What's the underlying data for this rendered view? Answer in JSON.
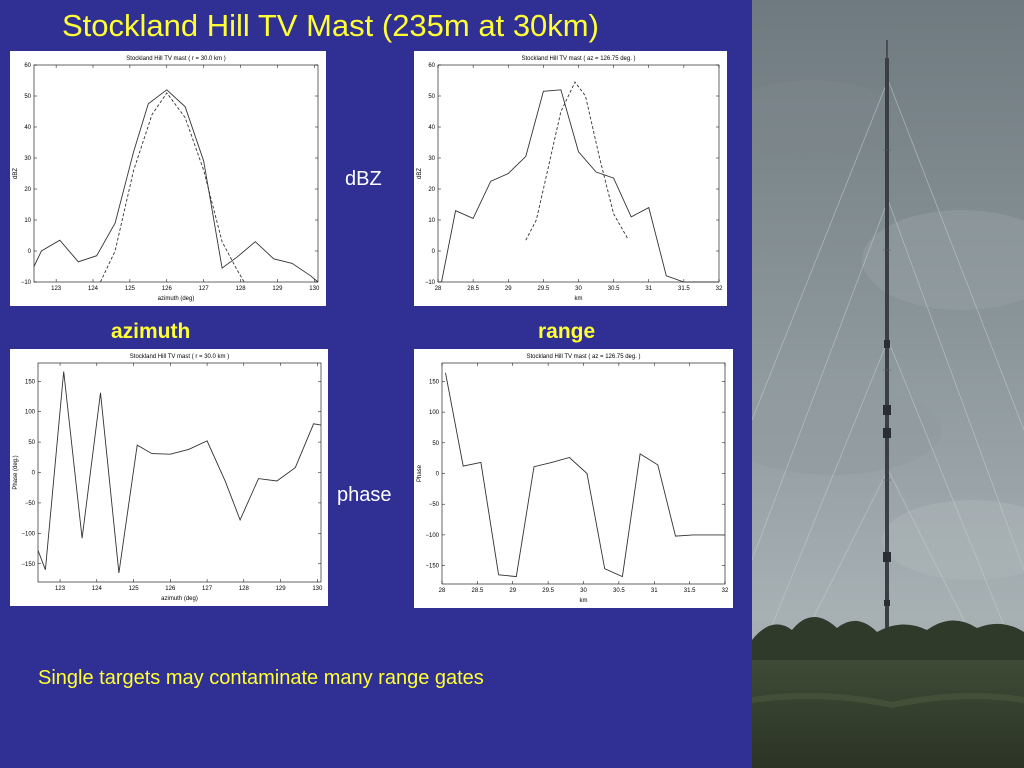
{
  "slide": {
    "title": "Stockland Hill TV Mast (235m at 30km)",
    "label_dbz": "dBZ",
    "label_phase": "phase",
    "label_azimuth": "azimuth",
    "label_range": "range",
    "note": "Single targets may contaminate many range gates"
  },
  "colors": {
    "background": "#2f2f94",
    "title_text": "#ffff33",
    "side_text": "#ffffff",
    "plot_line": "#333333"
  },
  "photo": {
    "subject": "mast-photo",
    "description_icon": "tv-mast-photo"
  },
  "chart_data": [
    {
      "id": "dbz-azimuth",
      "type": "line",
      "title": "Stockland Hill TV mast ( r = 30.0 km )",
      "xlabel": "azimuth (deg)",
      "ylabel": "dBZ",
      "xlim": [
        122.4,
        130.1
      ],
      "ylim": [
        -10,
        60
      ],
      "xticks": [
        123,
        124,
        125,
        126,
        127,
        128,
        129,
        130
      ],
      "yticks": [
        -10,
        0,
        10,
        20,
        30,
        40,
        50,
        60
      ],
      "grid": false,
      "series": [
        {
          "style": "solid",
          "x": [
            122.4,
            122.6,
            123.1,
            123.6,
            124.1,
            124.6,
            125.1,
            125.5,
            126.0,
            126.5,
            127.0,
            127.5,
            127.9,
            128.4,
            128.9,
            129.4,
            129.9,
            130.1
          ],
          "y": [
            -5,
            0,
            3.5,
            -3.5,
            -1.5,
            9,
            32,
            47.5,
            52,
            46.5,
            29,
            -5.5,
            -2,
            3,
            -2.5,
            -4,
            -8,
            -10
          ]
        },
        {
          "style": "dashed",
          "x": [
            124.2,
            124.6,
            125.1,
            125.6,
            126.0,
            126.5,
            127.0,
            127.5,
            127.9,
            128.1
          ],
          "y": [
            -10,
            0,
            26,
            44,
            51,
            43,
            26,
            3,
            -6,
            -10
          ]
        }
      ]
    },
    {
      "id": "dbz-range",
      "type": "line",
      "title": "Stockland Hill TV mast ( az = 126.75 deg. )",
      "xlabel": "km",
      "ylabel": "dBZ",
      "xlim": [
        28,
        32
      ],
      "ylim": [
        -10,
        60
      ],
      "xticks": [
        "28",
        "28.5",
        "29",
        "29.5",
        "30",
        "30.5",
        "31",
        "31.5",
        "32"
      ],
      "yticks": [
        -10,
        0,
        10,
        20,
        30,
        40,
        50,
        60
      ],
      "grid": false,
      "series": [
        {
          "style": "solid",
          "x": [
            28.05,
            28.25,
            28.5,
            28.75,
            29.0,
            29.25,
            29.5,
            29.75,
            30.0,
            30.25,
            30.5,
            30.75,
            31.0,
            31.25,
            31.5,
            31.75,
            32.0
          ],
          "y": [
            -10,
            13,
            10.5,
            22.5,
            25,
            30.5,
            51.5,
            52,
            32,
            25.5,
            23.5,
            11,
            14,
            -8,
            -10,
            -10,
            -10
          ]
        },
        {
          "style": "dashed",
          "x": [
            29.25,
            29.4,
            29.5,
            29.75,
            29.95,
            30.1,
            30.3,
            30.5,
            30.7
          ],
          "y": [
            3.5,
            10,
            20,
            45,
            54.5,
            50,
            30,
            12,
            4
          ]
        }
      ]
    },
    {
      "id": "phase-azimuth",
      "type": "line",
      "title": "Stockland Hill TV mast ( r = 30.0 km )",
      "xlabel": "azimuth (deg)",
      "ylabel": "Phase (deg.)",
      "xlim": [
        122.4,
        130.1
      ],
      "ylim": [
        -180,
        180
      ],
      "xticks": [
        123,
        124,
        125,
        126,
        127,
        128,
        129,
        130
      ],
      "yticks": [
        -150,
        -100,
        -50,
        0,
        50,
        100,
        150
      ],
      "grid": false,
      "series": [
        {
          "style": "solid",
          "x": [
            122.4,
            122.6,
            123.1,
            123.6,
            124.1,
            124.6,
            125.1,
            125.5,
            126.0,
            126.5,
            127.0,
            127.5,
            127.9,
            128.4,
            128.9,
            129.4,
            129.9,
            130.1
          ],
          "y": [
            -128,
            -160,
            166,
            -108,
            131,
            -165,
            45,
            31,
            30,
            38,
            52,
            -15,
            -78,
            -10,
            -14,
            8,
            80,
            78
          ]
        }
      ]
    },
    {
      "id": "phase-range",
      "type": "line",
      "title": "Stockland Hill TV mast ( az = 126.75 deg. )",
      "xlabel": "km",
      "ylabel": "Phase",
      "xlim": [
        28,
        32
      ],
      "ylim": [
        -180,
        180
      ],
      "xticks": [
        "28",
        "28.5",
        "29",
        "29.5",
        "30",
        "30.5",
        "31",
        "31.5",
        "32"
      ],
      "yticks": [
        -150,
        -100,
        -50,
        0,
        50,
        100,
        150
      ],
      "grid": false,
      "series": [
        {
          "style": "solid",
          "x": [
            28.05,
            28.3,
            28.55,
            28.8,
            29.05,
            29.3,
            29.55,
            29.8,
            30.05,
            30.3,
            30.55,
            30.8,
            31.05,
            31.3,
            31.55,
            31.8,
            32.0
          ],
          "y": [
            164,
            12,
            18,
            -165,
            -168,
            11,
            18,
            26,
            0,
            -155,
            -168,
            32,
            14,
            -102,
            -100,
            -100,
            -100
          ]
        }
      ]
    }
  ]
}
